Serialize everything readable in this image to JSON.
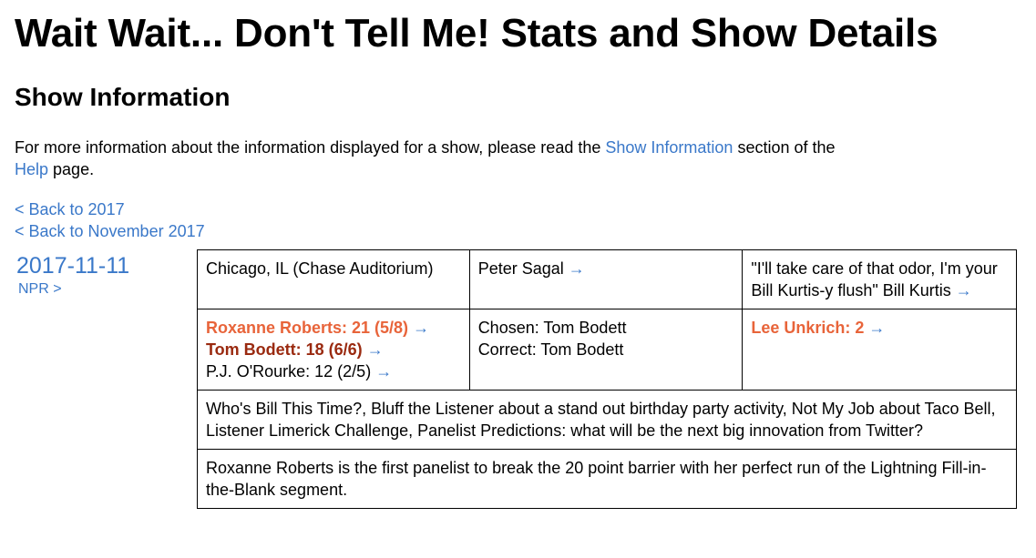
{
  "page": {
    "title": "Wait Wait... Don't Tell Me! Stats and Show Details",
    "section_title": "Show Information",
    "intro": {
      "text_before": "For more information about the information displayed for a show, please read the ",
      "show_info_link": "Show Information",
      "text_middle": " section of the ",
      "help_link": "Help",
      "text_after": " page."
    },
    "back_links": {
      "year": "< Back to 2017",
      "month": "< Back to November 2017"
    }
  },
  "show": {
    "date": "2017-11-11",
    "npr_link": "NPR >",
    "location": "Chicago, IL (Chase Auditorium)",
    "host": "Peter Sagal",
    "quote": "\"I'll take care of that odor, I'm your Bill Kurtis-y flush\" Bill Kurtis",
    "panelists": [
      {
        "text": "Roxanne Roberts: 21 (5/8)",
        "rank": "winner"
      },
      {
        "text": "Tom Bodett: 18 (6/6)",
        "rank": "second"
      },
      {
        "text": "P.J. O'Rourke: 12 (2/5)",
        "rank": "third"
      }
    ],
    "bluff": {
      "chosen": "Chosen: Tom Bodett",
      "correct": "Correct: Tom Bodett"
    },
    "guest": "Lee Unkrich: 2",
    "segments": "Who's Bill This Time?, Bluff the Listener about a stand out birthday party activity, Not My Job about Taco Bell, Listener Limerick Challenge, Panelist Predictions: what will be the next big innovation from Twitter?",
    "notes": "Roxanne Roberts is the first panelist to break the 20 point barrier with her perfect run of the Lightning Fill-in-the-Blank segment.",
    "arrow": "→"
  },
  "colors": {
    "link": "#3a78c9",
    "winner": "#e8643a",
    "second": "#9a2a10"
  },
  "icons": [
    "right-arrow-icon"
  ]
}
